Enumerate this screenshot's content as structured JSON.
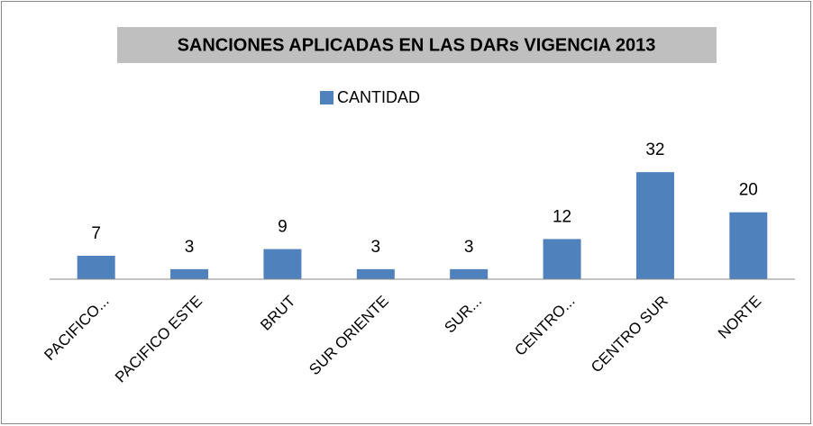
{
  "chart_data": {
    "type": "bar",
    "title": "SANCIONES APLICADAS  EN LAS DARs VIGENCIA 2013",
    "categories": [
      "PACIFICO...",
      "PACIFICO ESTE",
      "BRUT",
      "SUR ORIENTE",
      "SUR...",
      "CENTRO...",
      "CENTRO SUR",
      "NORTE"
    ],
    "series": [
      {
        "name": "CANTIDAD",
        "color": "#4f81bd",
        "values": [
          7,
          3,
          9,
          3,
          3,
          12,
          32,
          20
        ]
      }
    ],
    "ylim": [
      0,
      35
    ],
    "legend": "top"
  }
}
